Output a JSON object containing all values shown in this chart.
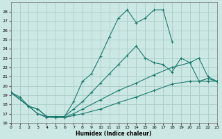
{
  "xlabel": "Humidex (Indice chaleur)",
  "bg_color": "#cce8e4",
  "grid_color": "#aaccc8",
  "line_color": "#1a7a6e",
  "xlim": [
    0,
    23
  ],
  "ylim": [
    16,
    29
  ],
  "xticks": [
    0,
    1,
    2,
    3,
    4,
    5,
    6,
    7,
    8,
    9,
    10,
    11,
    12,
    13,
    14,
    15,
    16,
    17,
    18,
    19,
    20,
    21,
    22,
    23
  ],
  "yticks": [
    16,
    17,
    18,
    19,
    20,
    21,
    22,
    23,
    24,
    25,
    26,
    27,
    28
  ],
  "series": [
    {
      "x": [
        0,
        1,
        2,
        3,
        4,
        5,
        6,
        7,
        8,
        9,
        10,
        11,
        12,
        13,
        14,
        15,
        16,
        17,
        18
      ],
      "y": [
        19.3,
        18.8,
        17.8,
        17.0,
        16.7,
        16.7,
        16.7,
        18.3,
        20.5,
        21.3,
        23.2,
        25.3,
        27.3,
        28.2,
        26.8,
        27.3,
        28.2,
        28.2,
        24.8
      ]
    },
    {
      "x": [
        0,
        2,
        3,
        4,
        5,
        6,
        7,
        8,
        9,
        10,
        11,
        12,
        13,
        14,
        15,
        16,
        17,
        18,
        19,
        20,
        21,
        22,
        23
      ],
      "y": [
        19.3,
        17.8,
        17.5,
        16.7,
        16.7,
        16.7,
        17.5,
        18.3,
        19.3,
        20.3,
        21.3,
        22.3,
        23.3,
        24.3,
        23.0,
        22.5,
        22.3,
        21.5,
        23.0,
        22.5,
        23.0,
        21.0,
        20.5
      ]
    },
    {
      "x": [
        0,
        2,
        3,
        4,
        5,
        6,
        7,
        8,
        10,
        12,
        14,
        16,
        18,
        20,
        21,
        22,
        23
      ],
      "y": [
        19.3,
        17.8,
        17.5,
        16.7,
        16.6,
        16.6,
        17.0,
        17.5,
        18.5,
        19.5,
        20.3,
        21.2,
        22.0,
        22.5,
        20.5,
        20.8,
        20.5
      ]
    },
    {
      "x": [
        0,
        2,
        3,
        4,
        5,
        6,
        7,
        8,
        10,
        12,
        14,
        16,
        18,
        20,
        22,
        23
      ],
      "y": [
        19.3,
        17.8,
        17.0,
        16.6,
        16.6,
        16.6,
        16.8,
        17.0,
        17.5,
        18.2,
        18.8,
        19.5,
        20.2,
        20.5,
        20.5,
        20.5
      ]
    }
  ]
}
